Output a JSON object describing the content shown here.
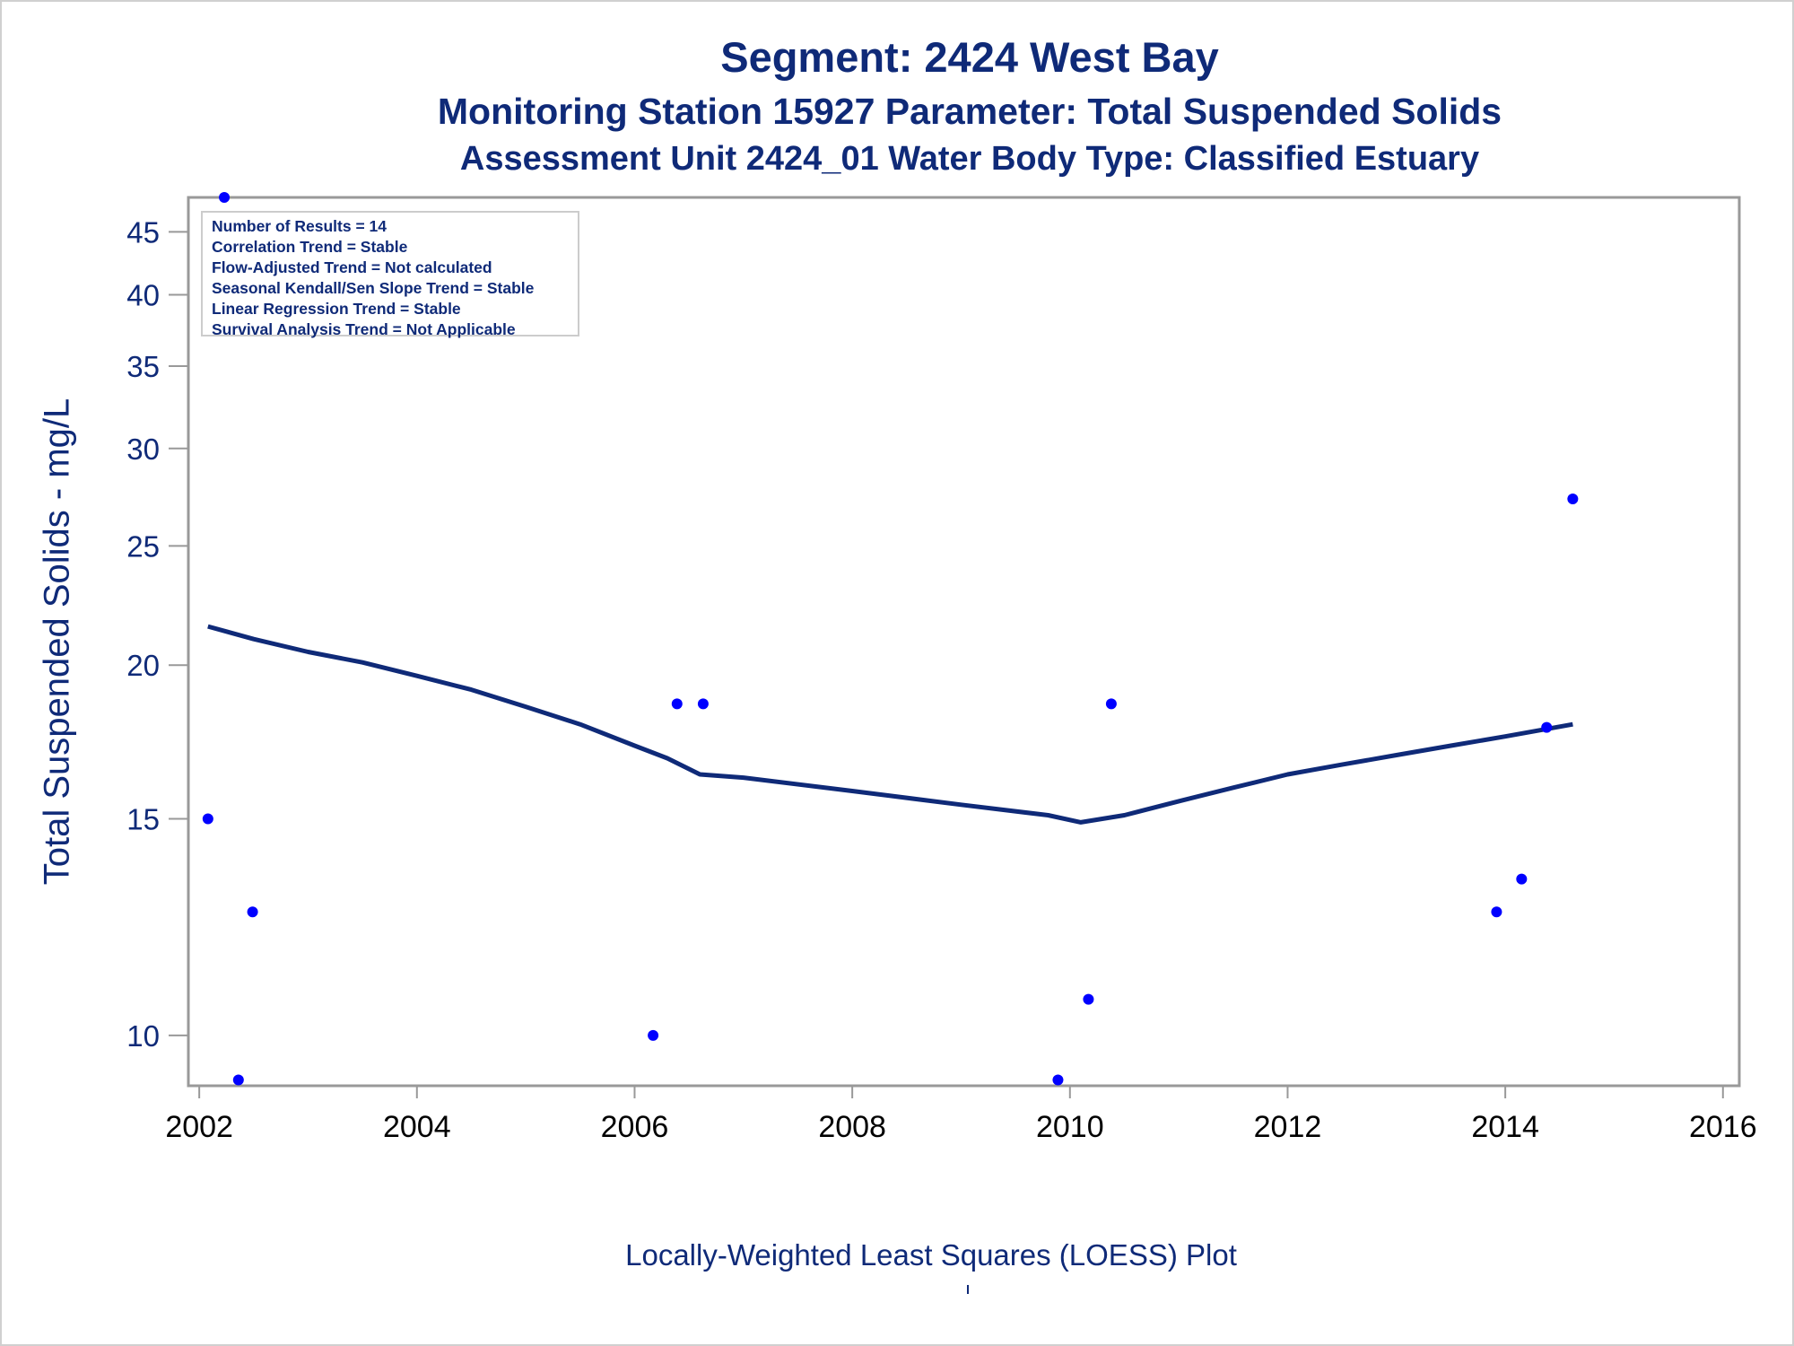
{
  "title": "Segment: 2424  West Bay",
  "subtitle1": "Monitoring Station 15927 Parameter: Total Suspended Solids",
  "subtitle2": "Assessment Unit 2424_01   Water Body Type: Classified Estuary",
  "info_box": [
    "Number of Results = 14",
    "Correlation Trend = Stable",
    "Flow-Adjusted Trend = Not calculated",
    "Seasonal Kendall/Sen Slope Trend = Stable",
    "Linear Regression Trend = Stable",
    "Survival Analysis Trend = Not Applicable"
  ],
  "footnote": "Locally-Weighted Least Squares (LOESS) Plot",
  "colors": {
    "text": "#0f2a78",
    "points": "#0000ff",
    "line": "#0f2a78",
    "axis": "#999999"
  },
  "chart_data": {
    "type": "scatter",
    "title": "Segment: 2424  West Bay",
    "xlabel": "",
    "ylabel": "Total Suspended Solids - mg/L",
    "y_scale": "log",
    "xlim": [
      2001.9,
      2016.15
    ],
    "ylim": [
      9.1,
      48
    ],
    "x_ticks": [
      2002,
      2004,
      2006,
      2008,
      2010,
      2012,
      2014,
      2016
    ],
    "y_ticks": [
      10,
      15,
      20,
      25,
      30,
      35,
      40,
      45
    ],
    "grid": false,
    "series": [
      {
        "type": "scatter",
        "points": [
          {
            "x": 2002.08,
            "y": 15
          },
          {
            "x": 2002.23,
            "y": 48
          },
          {
            "x": 2002.36,
            "y": 9.2
          },
          {
            "x": 2002.49,
            "y": 12.6
          },
          {
            "x": 2006.17,
            "y": 10
          },
          {
            "x": 2006.39,
            "y": 18.6
          },
          {
            "x": 2006.63,
            "y": 18.6
          },
          {
            "x": 2009.89,
            "y": 9.2
          },
          {
            "x": 2010.17,
            "y": 10.7
          },
          {
            "x": 2010.38,
            "y": 18.6
          },
          {
            "x": 2013.92,
            "y": 12.6
          },
          {
            "x": 2014.15,
            "y": 13.4
          },
          {
            "x": 2014.38,
            "y": 17.8
          },
          {
            "x": 2014.62,
            "y": 27.3
          }
        ]
      },
      {
        "type": "line",
        "points": [
          {
            "x": 2002.08,
            "y": 21.5
          },
          {
            "x": 2002.5,
            "y": 21.0
          },
          {
            "x": 2003.0,
            "y": 20.5
          },
          {
            "x": 2003.5,
            "y": 20.1
          },
          {
            "x": 2004.0,
            "y": 19.6
          },
          {
            "x": 2004.5,
            "y": 19.1
          },
          {
            "x": 2005.0,
            "y": 18.5
          },
          {
            "x": 2005.5,
            "y": 17.9
          },
          {
            "x": 2006.0,
            "y": 17.2
          },
          {
            "x": 2006.3,
            "y": 16.8
          },
          {
            "x": 2006.6,
            "y": 16.3
          },
          {
            "x": 2007.0,
            "y": 16.2
          },
          {
            "x": 2008.0,
            "y": 15.8
          },
          {
            "x": 2009.0,
            "y": 15.4
          },
          {
            "x": 2009.8,
            "y": 15.1
          },
          {
            "x": 2010.1,
            "y": 14.9
          },
          {
            "x": 2010.5,
            "y": 15.1
          },
          {
            "x": 2011.0,
            "y": 15.5
          },
          {
            "x": 2011.5,
            "y": 15.9
          },
          {
            "x": 2012.0,
            "y": 16.3
          },
          {
            "x": 2012.5,
            "y": 16.6
          },
          {
            "x": 2013.0,
            "y": 16.9
          },
          {
            "x": 2013.5,
            "y": 17.2
          },
          {
            "x": 2014.0,
            "y": 17.5
          },
          {
            "x": 2014.62,
            "y": 17.9
          }
        ]
      }
    ]
  }
}
